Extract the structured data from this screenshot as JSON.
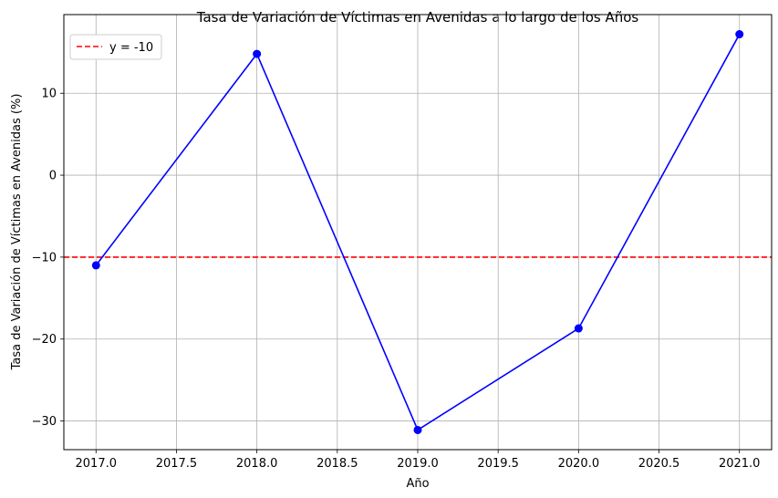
{
  "chart_data": {
    "type": "line",
    "title": "Tasa de Variación de Víctimas en Avenidas a lo largo de los Años",
    "xlabel": "Año",
    "ylabel": "Tasa de Variación de Víctimas en Avenidas (%)",
    "x": [
      2017,
      2018,
      2019,
      2020,
      2021
    ],
    "series": [
      {
        "values": [
          -11.0,
          14.8,
          -31.1,
          -18.7,
          17.2
        ],
        "color": "#0000ff",
        "marker": "circle"
      }
    ],
    "hline": {
      "y": -10,
      "label": "y = -10",
      "color": "#ff0000",
      "style": "dashed"
    },
    "xlim": [
      2016.8,
      2021.2
    ],
    "ylim": [
      -33.5,
      19.6
    ],
    "xticks": [
      2017.0,
      2017.5,
      2018.0,
      2018.5,
      2019.0,
      2019.5,
      2020.0,
      2020.5,
      2021.0
    ],
    "xtick_labels": [
      "2017.0",
      "2017.5",
      "2018.0",
      "2018.5",
      "2019.0",
      "2019.5",
      "2020.0",
      "2020.5",
      "2021.0"
    ],
    "yticks": [
      -30,
      -20,
      -10,
      0,
      10
    ],
    "ytick_labels": [
      "−30",
      "−20",
      "−10",
      "0",
      "10"
    ],
    "grid": true,
    "legend_position": "upper-left"
  }
}
